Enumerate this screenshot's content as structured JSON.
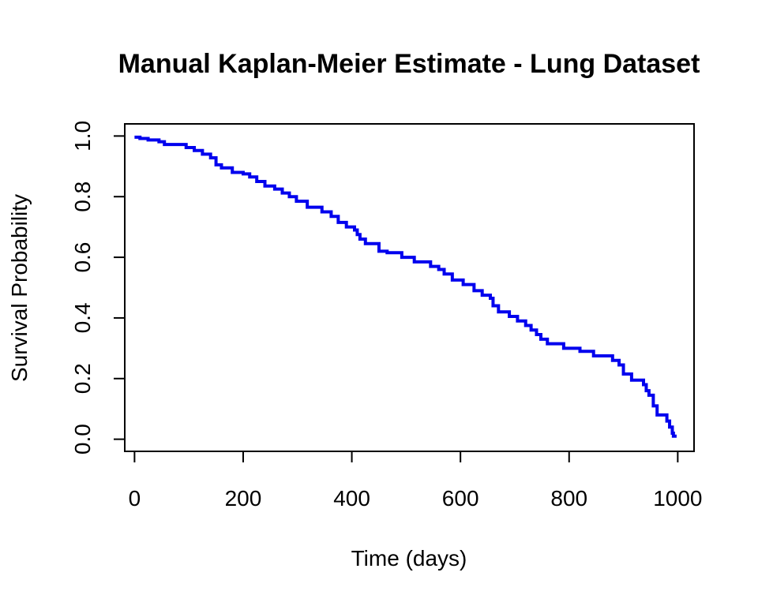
{
  "chart_data": {
    "type": "line",
    "title": "Manual Kaplan-Meier Estimate - Lung Dataset",
    "xlabel": "Time (days)",
    "ylabel": "Survival Probability",
    "xlim": [
      -18,
      1030
    ],
    "ylim": [
      -0.04,
      1.04
    ],
    "xticks": [
      0,
      200,
      400,
      600,
      800,
      1000
    ],
    "xtick_labels": [
      "0",
      "200",
      "400",
      "600",
      "800",
      "1000"
    ],
    "yticks": [
      0.0,
      0.2,
      0.4,
      0.6,
      0.8,
      1.0
    ],
    "ytick_labels": [
      "0.0",
      "0.2",
      "0.4",
      "0.6",
      "0.8",
      "1.0"
    ],
    "grid": false,
    "line_color": "#0000ee",
    "series": [
      {
        "step": "post",
        "x": [
          0,
          10,
          25,
          45,
          55,
          95,
          110,
          125,
          140,
          150,
          160,
          180,
          200,
          212,
          225,
          240,
          258,
          272,
          285,
          298,
          318,
          345,
          362,
          375,
          390,
          405,
          410,
          415,
          425,
          450,
          465,
          492,
          515,
          545,
          560,
          570,
          585,
          605,
          625,
          640,
          655,
          660,
          670,
          690,
          705,
          720,
          730,
          740,
          748,
          760,
          790,
          820,
          845,
          880,
          892,
          900,
          915,
          937,
          942,
          947,
          955,
          962,
          980,
          985,
          990,
          992,
          995
        ],
        "y": [
          0.996,
          0.992,
          0.987,
          0.981,
          0.972,
          0.962,
          0.952,
          0.94,
          0.928,
          0.905,
          0.895,
          0.88,
          0.875,
          0.865,
          0.85,
          0.835,
          0.825,
          0.812,
          0.8,
          0.785,
          0.765,
          0.75,
          0.735,
          0.715,
          0.7,
          0.69,
          0.675,
          0.66,
          0.645,
          0.62,
          0.615,
          0.6,
          0.585,
          0.57,
          0.56,
          0.545,
          0.525,
          0.51,
          0.49,
          0.475,
          0.465,
          0.44,
          0.42,
          0.405,
          0.39,
          0.375,
          0.36,
          0.345,
          0.33,
          0.315,
          0.3,
          0.29,
          0.275,
          0.26,
          0.245,
          0.215,
          0.195,
          0.18,
          0.16,
          0.145,
          0.11,
          0.08,
          0.06,
          0.04,
          0.02,
          0.01,
          0.005
        ]
      }
    ]
  }
}
